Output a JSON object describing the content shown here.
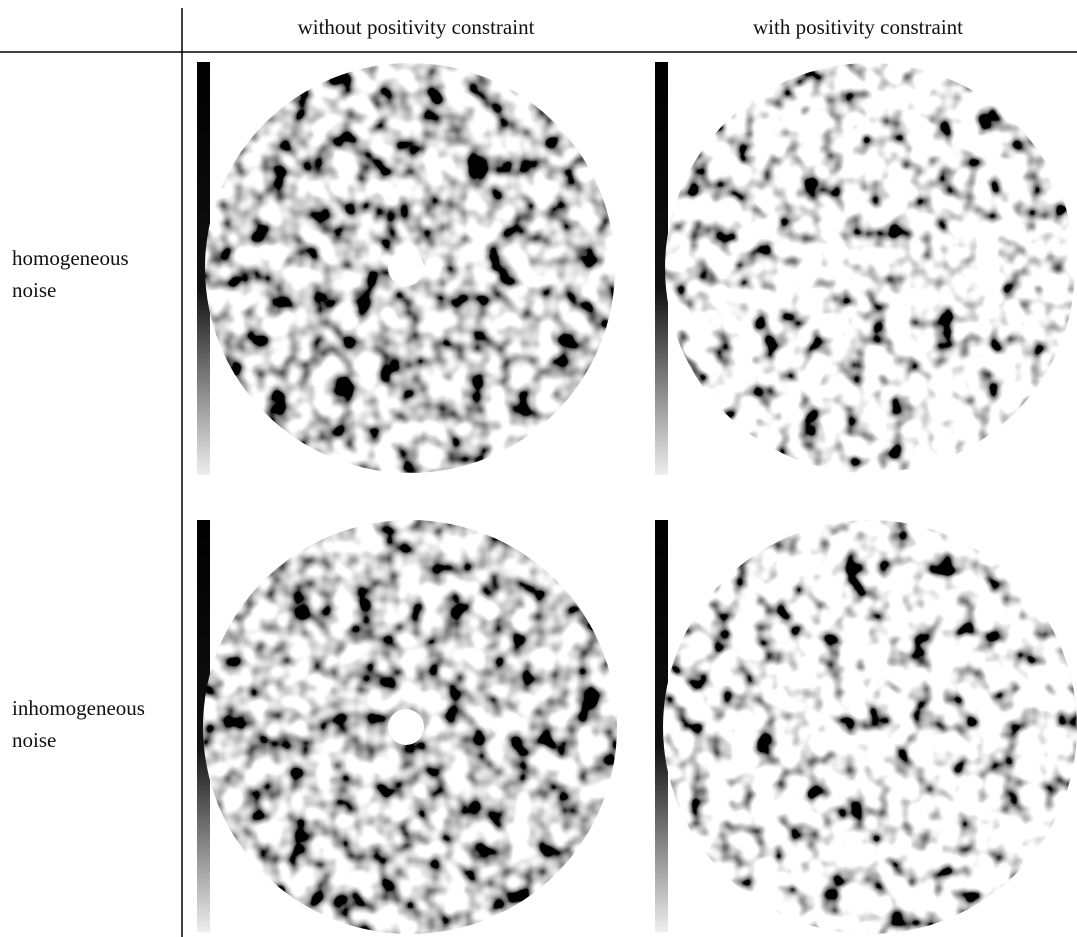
{
  "header": {
    "columns": [
      "without positivity constraint",
      "with positivity constraint"
    ]
  },
  "rows": [
    {
      "label_lines": [
        "homogeneous",
        "noise"
      ]
    },
    {
      "label_lines": [
        "inhomogeneous",
        "noise"
      ]
    }
  ]
}
